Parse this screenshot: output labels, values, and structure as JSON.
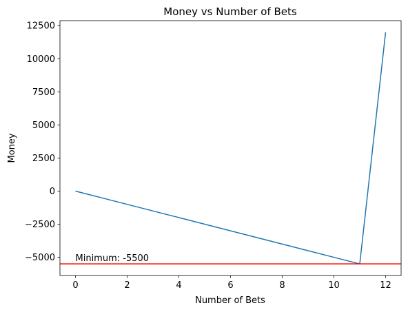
{
  "chart_data": {
    "type": "line",
    "title": "Money vs Number of Bets",
    "x_label": "Number of Bets",
    "y_label": "Money",
    "x": [
      0,
      1,
      2,
      3,
      4,
      5,
      6,
      7,
      8,
      9,
      10,
      11,
      12
    ],
    "series": [
      {
        "color": "#1f77b4",
        "values": [
          0,
          -500,
          -1000,
          -1500,
          -2000,
          -2500,
          -3000,
          -3500,
          -4000,
          -4500,
          -5000,
          -5500,
          12000
        ]
      }
    ],
    "xlim": [
      -0.6,
      12.6
    ],
    "xticks": [
      0,
      2,
      4,
      6,
      8,
      10,
      12
    ],
    "ylim": [
      -6375,
      12875
    ],
    "yticks": [
      {
        "value": -5000,
        "label": "−5000"
      },
      {
        "value": -2500,
        "label": "−2500"
      },
      0,
      2500,
      5000,
      7500,
      10000,
      12500
    ],
    "hline": {
      "value": -5500,
      "color": "#ff0000"
    },
    "annotation": "Minimum: -5500",
    "grid": false
  }
}
